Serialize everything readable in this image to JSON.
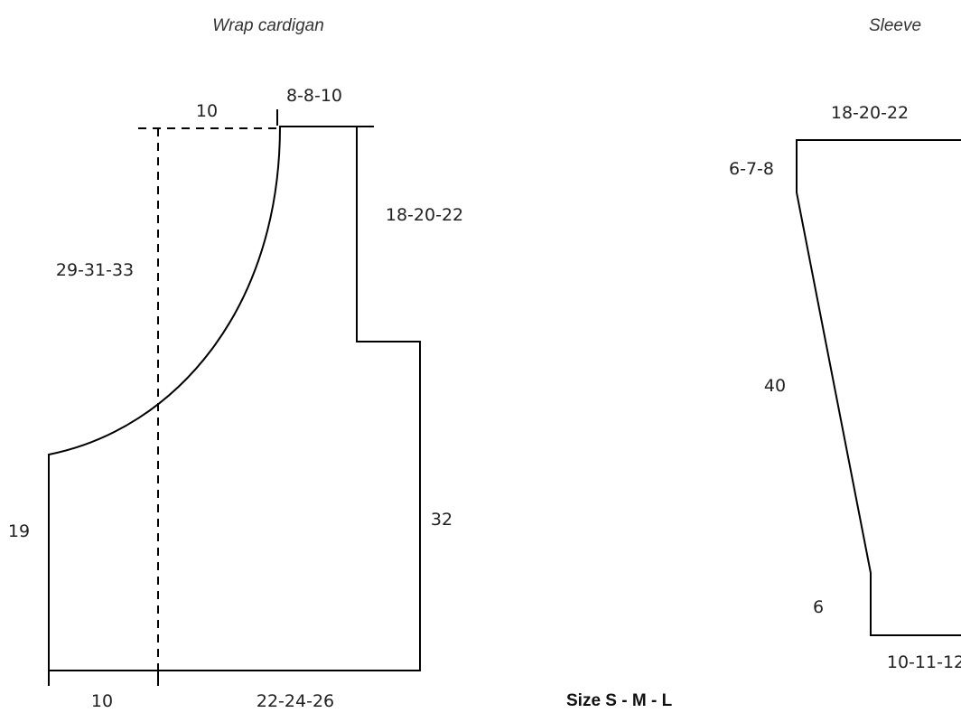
{
  "cardigan": {
    "title": "Wrap cardigan",
    "top_overlap": "10",
    "shoulder": "8-8-10",
    "armhole_depth": "18-20-22",
    "front_edge": "29-31-33",
    "side_length": "32",
    "lower_front": "19",
    "bottom_overlap": "10",
    "bottom_width": "22-24-26"
  },
  "sleeve": {
    "title": "Sleeve",
    "top_width": "18-20-22",
    "cap_height": "6-7-8",
    "length": "40",
    "cuff_height": "6",
    "cuff_width": "10-11-12"
  },
  "sizes": "Size S - M - L"
}
